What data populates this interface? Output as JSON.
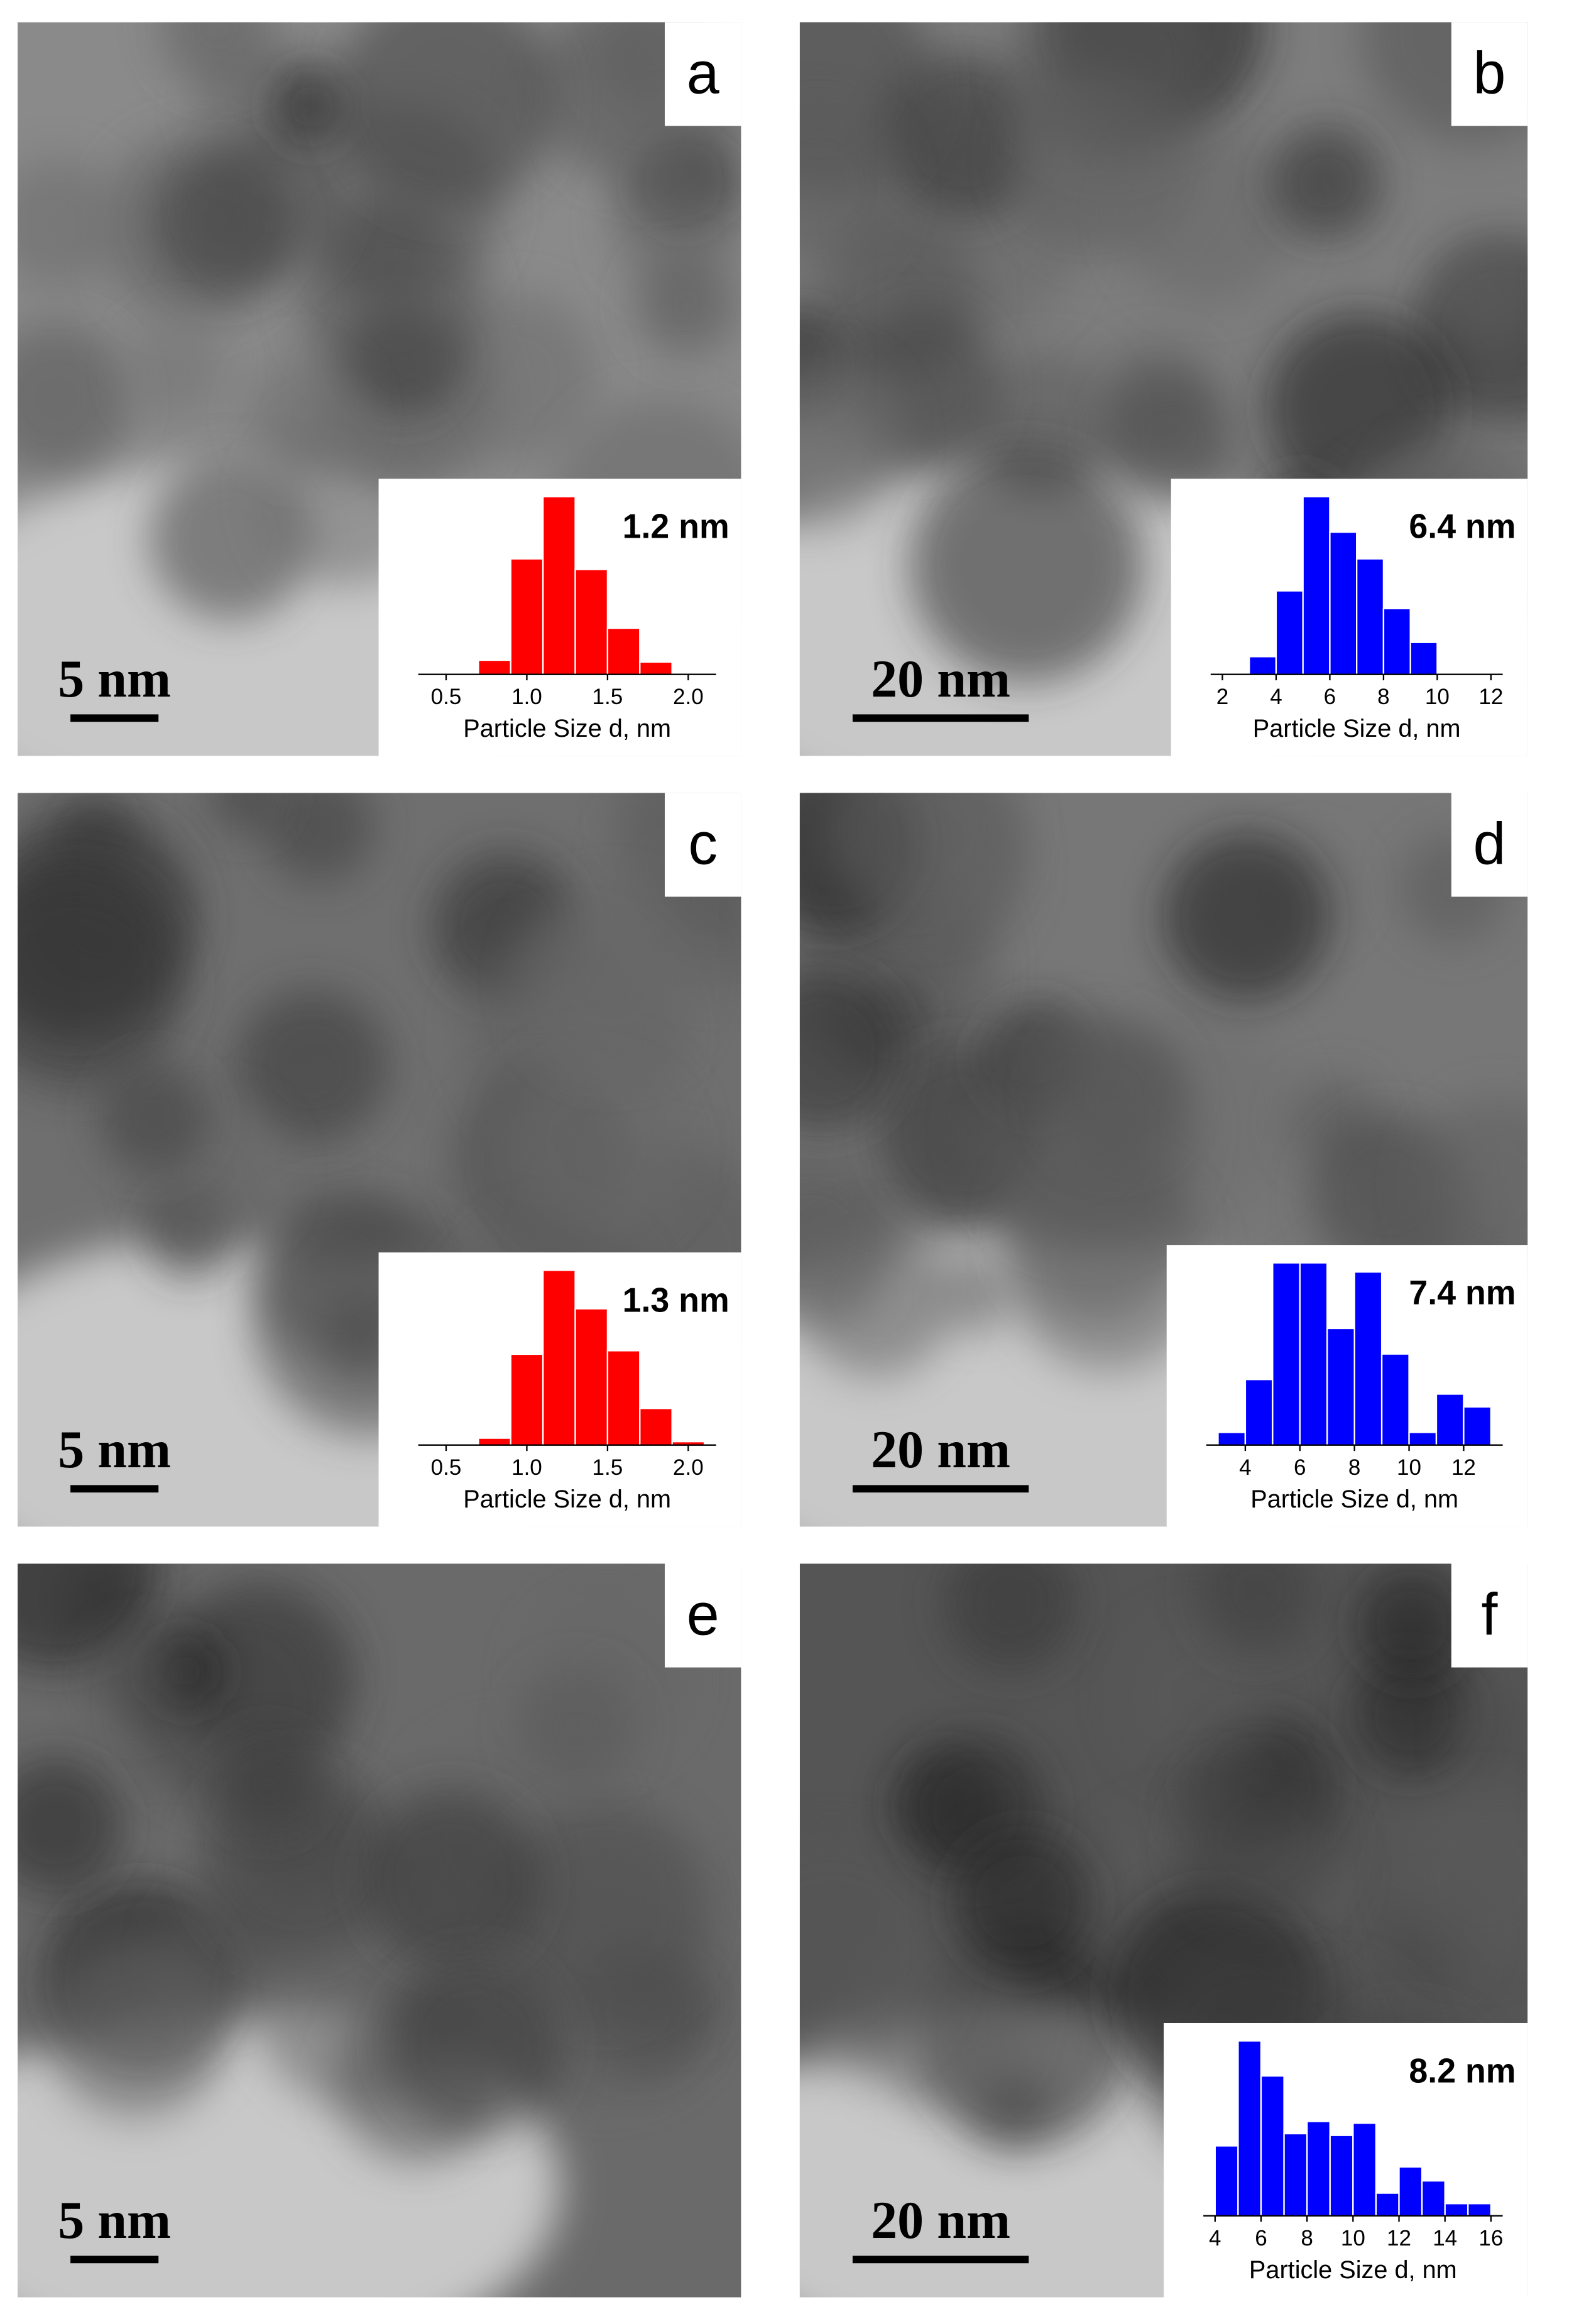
{
  "panels": [
    {
      "label": "a",
      "scale_bar": "5 nm",
      "histogram": {
        "type": "histogram",
        "color": "#ff0000",
        "bins": [
          0.7,
          0.9,
          1.1,
          1.3,
          1.5,
          1.7,
          1.9
        ],
        "counts": [
          8,
          65,
          100,
          59,
          26,
          7
        ],
        "xlim": [
          0.4,
          2.1
        ],
        "ylim": [
          0,
          100
        ],
        "xticks": [
          0.5,
          {
            "value": 1,
            "label": "1.0"
          },
          1.5,
          {
            "value": 2,
            "label": "2.0"
          }
        ],
        "annotation": "1.2 nm",
        "xlabel": "Particle Size d, nm"
      }
    },
    {
      "label": "b",
      "scale_bar": "20 nm",
      "histogram": {
        "type": "histogram",
        "color": "#0000ff",
        "bins": [
          3,
          4,
          5,
          6,
          7,
          8,
          9,
          10
        ],
        "counts": [
          10,
          47,
          100,
          80,
          65,
          37,
          18
        ],
        "xlim": [
          2,
          12
        ],
        "ylim": [
          0,
          100
        ],
        "xticks": [
          2,
          4,
          6,
          8,
          10,
          12
        ],
        "annotation": "6.4 nm",
        "xlabel": "Particle Size d, nm"
      }
    },
    {
      "label": "c",
      "scale_bar": "5 nm",
      "histogram": {
        "type": "histogram",
        "color": "#ff0000",
        "bins": [
          0.7,
          0.9,
          1.1,
          1.3,
          1.5,
          1.7,
          1.9,
          2.1
        ],
        "counts": [
          4,
          52,
          100,
          78,
          54,
          21,
          2
        ],
        "xlim": [
          0.4,
          2.1
        ],
        "ylim": [
          0,
          100
        ],
        "xticks": [
          0.5,
          {
            "value": 1,
            "label": "1.0"
          },
          1.5,
          {
            "value": 2,
            "label": "2.0"
          }
        ],
        "annotation": "1.3 nm",
        "xlabel": "Particle Size d, nm"
      }
    },
    {
      "label": "d",
      "scale_bar": "20 nm",
      "histogram": {
        "type": "histogram",
        "color": "#0000ff",
        "bins": [
          3,
          4,
          5,
          6,
          7,
          8,
          9,
          10,
          11,
          12,
          13
        ],
        "counts": [
          7,
          36,
          100,
          100,
          64,
          95,
          50,
          7,
          28,
          21
        ],
        "xlim": [
          3,
          13
        ],
        "ylim": [
          0,
          100
        ],
        "xticks": [
          4,
          6,
          8,
          10,
          12
        ],
        "annotation": "7.4 nm",
        "xlabel": "Particle Size d, nm"
      }
    },
    {
      "label": "e",
      "scale_bar": "5 nm"
    },
    {
      "label": "f",
      "scale_bar": "20 nm",
      "histogram": {
        "type": "histogram",
        "color": "#0000ff",
        "bins": [
          4,
          5,
          6,
          7,
          8,
          9,
          10,
          11,
          12,
          13,
          14,
          15,
          16
        ],
        "counts": [
          40,
          100,
          80,
          47,
          54,
          46,
          53,
          13,
          28,
          20,
          7,
          7
        ],
        "xlim": [
          4,
          16
        ],
        "ylim": [
          0,
          100
        ],
        "xticks": [
          4,
          6,
          8,
          10,
          12,
          14,
          16
        ],
        "annotation": "8.2 nm",
        "xlabel": "Particle Size d, nm"
      }
    }
  ]
}
